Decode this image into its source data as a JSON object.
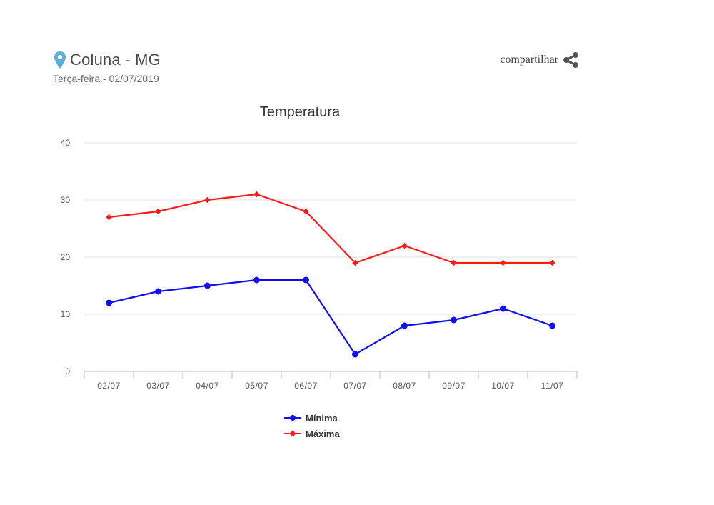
{
  "header": {
    "location": "Coluna - MG",
    "date": "Terça-feira - 02/07/2019",
    "share_label": "compartilhar"
  },
  "colors": {
    "min": "#1010ee",
    "max": "#ff1a1a",
    "pin": "#5aaedb"
  },
  "chart_data": {
    "type": "line",
    "title": "Temperatura",
    "categories": [
      "02/07",
      "03/07",
      "04/07",
      "05/07",
      "06/07",
      "07/07",
      "08/07",
      "09/07",
      "10/07",
      "11/07"
    ],
    "yticks": [
      0,
      10,
      20,
      30,
      40
    ],
    "ylim": [
      0,
      40
    ],
    "series": [
      {
        "name": "Mínima",
        "color": "#1010ee",
        "marker": "circle",
        "values": [
          12,
          14,
          15,
          16,
          16,
          3,
          8,
          9,
          11,
          8
        ]
      },
      {
        "name": "Máxima",
        "color": "#ff1a1a",
        "marker": "diamond",
        "values": [
          27,
          28,
          30,
          31,
          28,
          19,
          22,
          19,
          19,
          19
        ]
      }
    ],
    "legend_position": "bottom"
  }
}
